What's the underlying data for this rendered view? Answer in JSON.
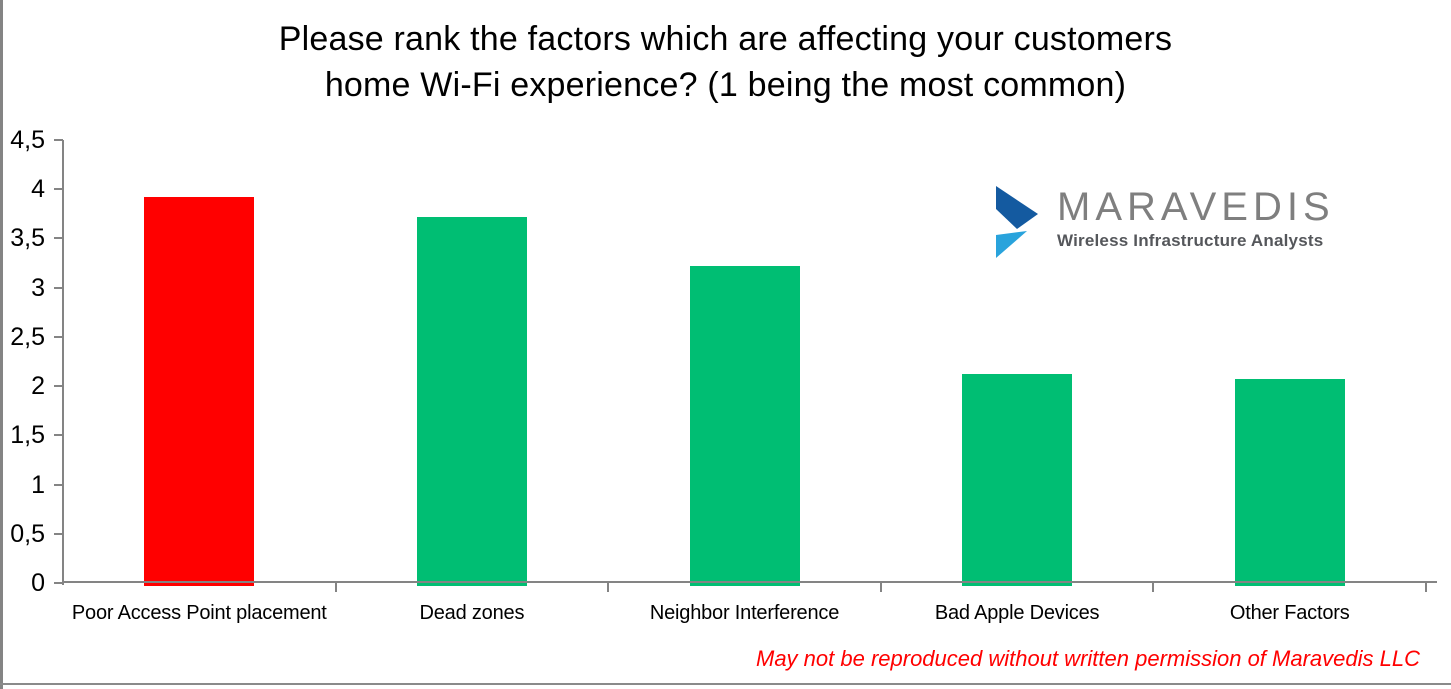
{
  "title": {
    "line1": "Please rank the factors which are affecting your customers",
    "line2": "home Wi-Fi experience? (1 being the most common)"
  },
  "chart_data": {
    "type": "bar",
    "title": "Please rank the factors which are affecting your customers home Wi-Fi experience? (1 being the most common)",
    "categories": [
      "Poor Access Point placement",
      "Dead zones",
      "Neighbor Interference",
      "Bad Apple Devices",
      "Other Factors"
    ],
    "values": [
      3.9,
      3.7,
      3.2,
      2.1,
      2.05
    ],
    "bar_colors": [
      "#FF0000",
      "#00BE73",
      "#00BE73",
      "#00BE73",
      "#00BE73"
    ],
    "xlabel": "",
    "ylabel": "",
    "ylim": [
      0,
      4.5
    ],
    "grid": "off",
    "legend": "none",
    "y_ticks": {
      "values": [
        4.5,
        4,
        3.5,
        3,
        2.5,
        2,
        1.5,
        1,
        0.5,
        0
      ],
      "labels": [
        "4,5",
        "4",
        "3,5",
        "3",
        "2,5",
        "2",
        "1,5",
        "1",
        "0,5",
        "0"
      ]
    }
  },
  "logo": {
    "name": "MARAVEDIS",
    "tagline": "Wireless Infrastructure Analysts",
    "colors": {
      "name_gray": "#7f7f7f",
      "tagline_gray": "#55575b",
      "chevron_dark_blue": "#145AA0",
      "chevron_light_blue": "#29A3DC"
    }
  },
  "footer": {
    "text": "May not be reproduced without written permission of Maravedis LLC",
    "color": "#FF0000"
  },
  "style_colors": {
    "axis_gray": "#848484",
    "highlight_bar": "#FF0000",
    "default_bar": "#00BE73",
    "slide_border": "#848484"
  }
}
